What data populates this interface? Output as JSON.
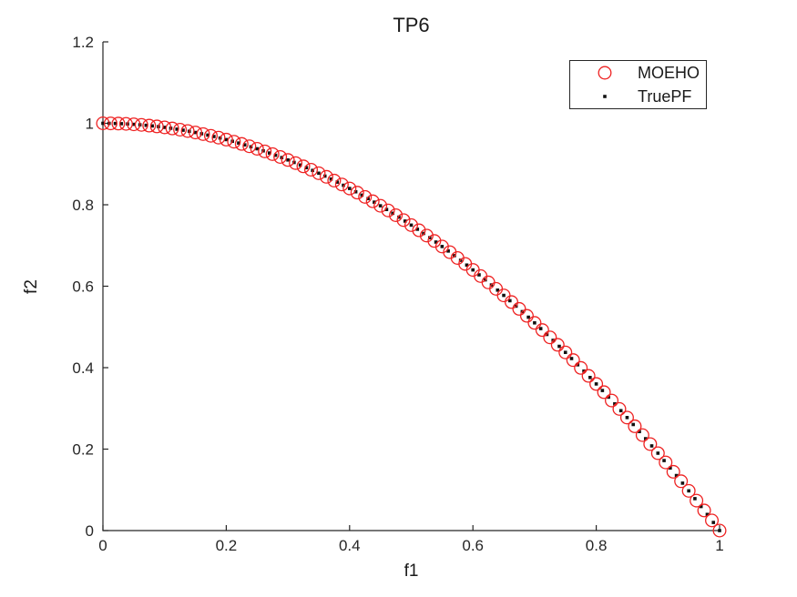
{
  "window": {
    "background": "#ffffff"
  },
  "chart_data": {
    "type": "scatter",
    "title": "TP6",
    "xlabel": "f1",
    "ylabel": "f2",
    "xlim": [
      0,
      1
    ],
    "ylim": [
      0,
      1.2
    ],
    "x_ticks": [
      0,
      0.2,
      0.4,
      0.6,
      0.8,
      1
    ],
    "x_tick_labels": [
      "0",
      "0.2",
      "0.4",
      "0.6",
      "0.8",
      "1"
    ],
    "y_ticks": [
      0,
      0.2,
      0.4,
      0.6,
      0.8,
      1,
      1.2
    ],
    "y_tick_labels": [
      "0",
      "0.2",
      "0.4",
      "0.6",
      "0.8",
      "1",
      "1.2"
    ],
    "grid": false,
    "axis_color": "#262626",
    "tick_label_color": "#262626",
    "pareto_front_formula": "f2 = 1 - f1^2",
    "curve_endpoints": {
      "start": [
        0,
        1
      ],
      "end": [
        1,
        0
      ]
    },
    "legend": {
      "position": "northeast",
      "border_color": "#262626",
      "background": "#ffffff"
    },
    "series": [
      {
        "name": "MOEHO",
        "marker": "open-circle",
        "color": "#ee2222",
        "marker_diameter_px": 15,
        "marker_stroke_px": 1.3,
        "formula": "f2 = 1 - f1^2",
        "x_start": 0,
        "x_end": 1,
        "n_points": 81
      },
      {
        "name": "TruePF",
        "marker": "dot",
        "color": "#111111",
        "marker_diameter_px": 3.6,
        "formula": "f2 = 1 - f1^2",
        "x_start": 0,
        "x_end": 1,
        "n_points": 101
      }
    ]
  }
}
